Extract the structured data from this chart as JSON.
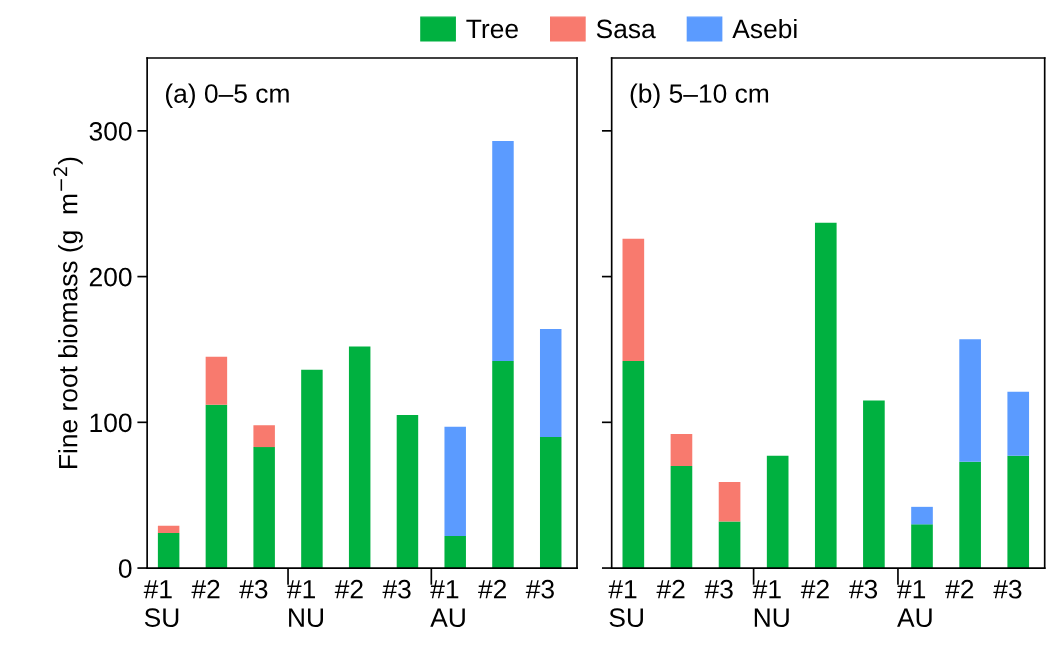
{
  "chart_data": [
    {
      "type": "bar",
      "stacked": true,
      "title": "(a) 0–5 cm",
      "ylabel": "Fine root biomass (g  m$^{−2}$)",
      "categories": [
        "#1\nSU",
        "#2",
        "#3",
        "#1\nNU",
        "#2",
        "#3",
        "#1\nAU",
        "#2",
        "#3"
      ],
      "legend": "top",
      "grid": false,
      "ylim": [
        0,
        350
      ],
      "yticks": [
        0,
        100,
        200,
        300
      ],
      "series": [
        {
          "name": "Tree",
          "color": "#00b140",
          "values": [
            24,
            112,
            83,
            136,
            152,
            105,
            22,
            142,
            90
          ]
        },
        {
          "name": "Sasa",
          "color": "#f87a6e",
          "values": [
            5,
            33,
            15,
            null,
            null,
            null,
            null,
            null,
            null
          ]
        },
        {
          "name": "Asebi",
          "color": "#5b9bff",
          "values": [
            null,
            null,
            null,
            null,
            null,
            null,
            75,
            151,
            74
          ]
        }
      ]
    },
    {
      "type": "bar",
      "stacked": true,
      "title": "(b) 5–10 cm",
      "categories": [
        "#1\nSU",
        "#2",
        "#3",
        "#1\nNU",
        "#2",
        "#3",
        "#1\nAU",
        "#2",
        "#3"
      ],
      "grid": false,
      "ylim": [
        0,
        350
      ],
      "yticks": [
        0,
        100,
        200,
        300
      ],
      "tick_labels": "x",
      "series": [
        {
          "color": "#00b140",
          "values": [
            142,
            70,
            32,
            77,
            237,
            115,
            30,
            73,
            77
          ]
        },
        {
          "color": "#f87a6e",
          "values": [
            84,
            22,
            27,
            null,
            null,
            null,
            null,
            null,
            null
          ]
        },
        {
          "color": "#5b9bff",
          "values": [
            null,
            null,
            null,
            null,
            null,
            null,
            12,
            84,
            44
          ]
        }
      ]
    }
  ]
}
